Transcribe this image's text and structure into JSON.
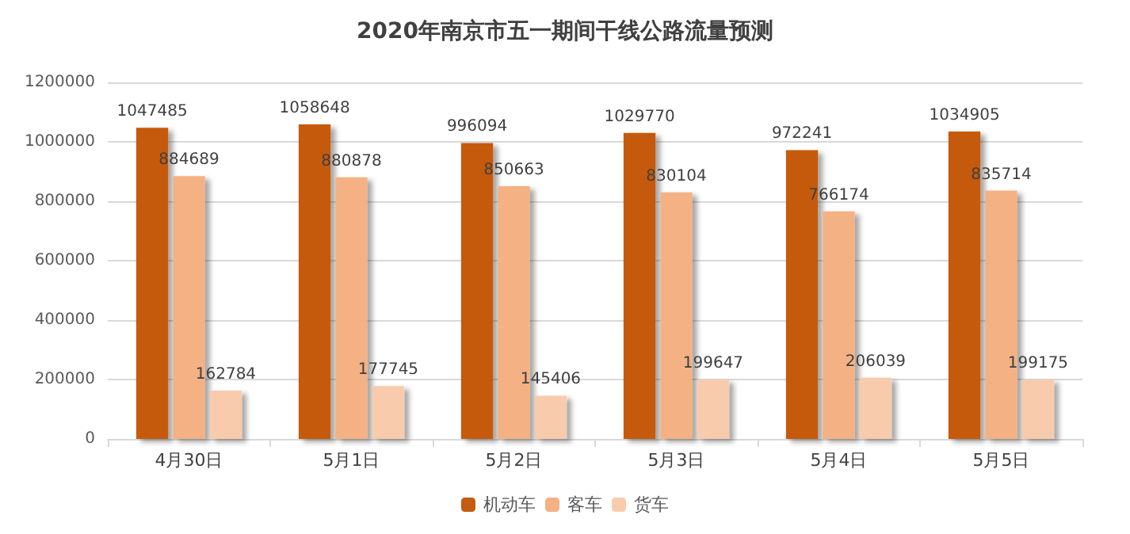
{
  "chart_data": {
    "type": "bar",
    "title": "2020年南京市五一期间干线公路流量预测",
    "categories": [
      "4月30日",
      "5月1日",
      "5月2日",
      "5月3日",
      "5月4日",
      "5月5日"
    ],
    "series": [
      {
        "name": "机动车",
        "color": "#c55a11",
        "values": [
          1047485,
          1058648,
          996094,
          1029770,
          972241,
          1034905
        ]
      },
      {
        "name": "客车",
        "color": "#f4b183",
        "values": [
          884689,
          880878,
          850663,
          830104,
          766174,
          835714
        ]
      },
      {
        "name": "货车",
        "color": "#f8cbad",
        "values": [
          162784,
          177745,
          145406,
          199647,
          206039,
          199175
        ]
      }
    ],
    "ylim": [
      0,
      1200000
    ],
    "yticks": [
      0,
      200000,
      400000,
      600000,
      800000,
      1000000,
      1200000
    ],
    "grid": "y",
    "legend": "bottom",
    "data_labels": true
  }
}
